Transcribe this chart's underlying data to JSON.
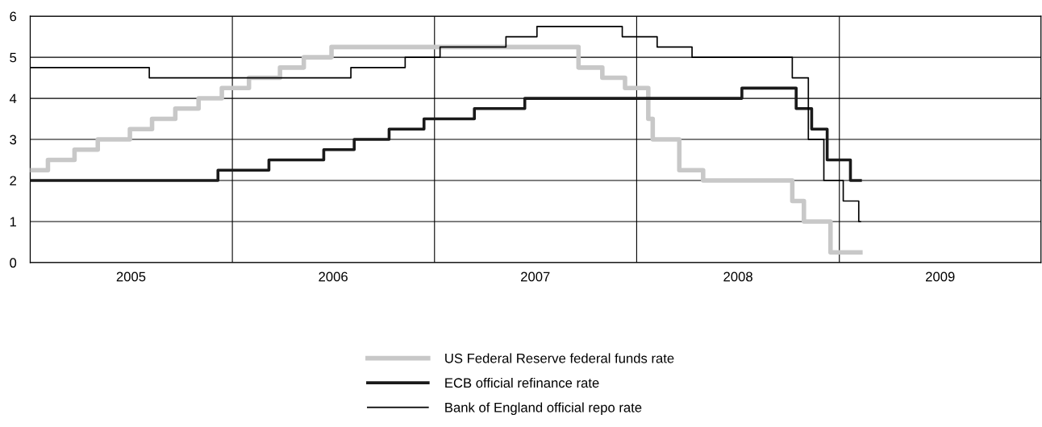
{
  "chart_data": {
    "type": "step",
    "xlim": [
      "2005-01-01",
      "2009-12-31"
    ],
    "xticks": [
      {
        "value": "2006-01-01",
        "label": null
      },
      {
        "value": "2007-01-01",
        "label": null
      },
      {
        "value": "2008-01-01",
        "label": null
      },
      {
        "value": "2009-01-01",
        "label": null
      },
      {
        "value": "2005-07-02",
        "label": "2005"
      },
      {
        "value": "2006-07-02",
        "label": "2006"
      },
      {
        "value": "2007-07-02",
        "label": "2007"
      },
      {
        "value": "2008-07-02",
        "label": "2008"
      },
      {
        "value": "2009-07-02",
        "label": "2009"
      }
    ],
    "ylim": [
      0,
      6
    ],
    "yticks": [
      0,
      1,
      2,
      3,
      4,
      5,
      6
    ],
    "grid": true,
    "legend": "bottom",
    "marker": "none",
    "line_style": "solid",
    "series": [
      {
        "name": "US Federal Reserve federal funds rate",
        "color": "#c8c8c8",
        "x": [
          "2005-01-01",
          "2005-02-02",
          "2005-03-22",
          "2005-05-03",
          "2005-06-30",
          "2005-08-09",
          "2005-09-20",
          "2005-11-01",
          "2005-12-13",
          "2006-01-31",
          "2006-03-28",
          "2006-05-10",
          "2006-06-29",
          "2007-09-18",
          "2007-10-31",
          "2007-12-11",
          "2008-01-22",
          "2008-01-30",
          "2008-03-18",
          "2008-04-30",
          "2008-10-08",
          "2008-10-29",
          "2008-12-16",
          "2009-02-08"
        ],
        "values": [
          2.25,
          2.5,
          2.75,
          3.0,
          3.25,
          3.5,
          3.75,
          4.0,
          4.25,
          4.5,
          4.75,
          5.0,
          5.25,
          4.75,
          4.5,
          4.25,
          3.5,
          3.0,
          2.25,
          2.0,
          1.5,
          1.0,
          0.25,
          0.25
        ]
      },
      {
        "name": "ECB official refinance rate",
        "color": "#1a1a1a",
        "x": [
          "2005-01-01",
          "2005-12-06",
          "2006-03-08",
          "2006-06-15",
          "2006-08-09",
          "2006-10-11",
          "2006-12-13",
          "2007-03-14",
          "2007-06-13",
          "2008-07-09",
          "2008-10-15",
          "2008-11-12",
          "2008-12-10",
          "2009-01-21",
          "2009-02-08"
        ],
        "values": [
          2.0,
          2.25,
          2.5,
          2.75,
          3.0,
          3.25,
          3.5,
          3.75,
          4.0,
          4.25,
          3.75,
          3.25,
          2.5,
          2.0,
          2.0
        ]
      },
      {
        "name": "Bank of England official repo rate",
        "color": "#000000",
        "x": [
          "2005-01-01",
          "2005-08-04",
          "2006-08-03",
          "2006-11-09",
          "2007-01-11",
          "2007-05-10",
          "2007-07-05",
          "2007-12-06",
          "2008-02-07",
          "2008-04-10",
          "2008-10-08",
          "2008-11-06",
          "2008-12-04",
          "2009-01-08",
          "2009-02-05",
          "2009-02-08"
        ],
        "values": [
          4.75,
          4.5,
          4.75,
          5.0,
          5.25,
          5.5,
          5.75,
          5.5,
          5.25,
          5.0,
          4.5,
          3.0,
          2.0,
          1.5,
          1.0,
          1.0
        ]
      }
    ]
  }
}
